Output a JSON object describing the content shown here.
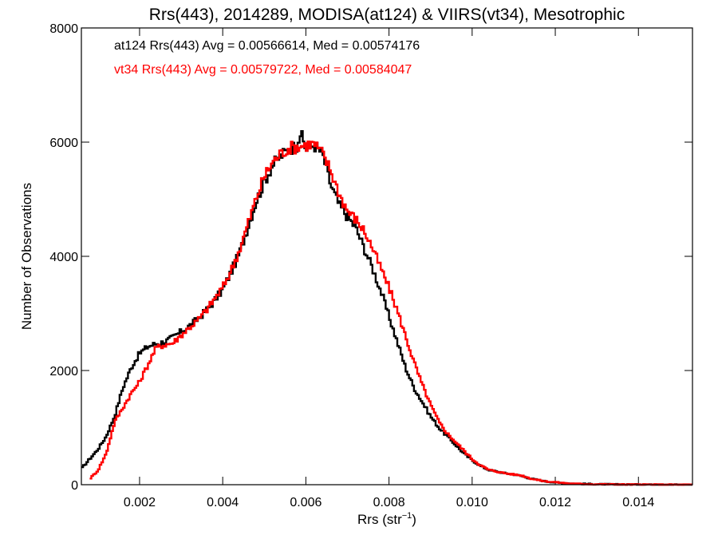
{
  "chart_data": {
    "type": "line",
    "title": "Rrs(443), 2014289, MODISA(at124) & VIIRS(vt34), Mesotrophic",
    "xlabel": "Rrs (str",
    "xlabel_sup": "−1",
    "xlabel_close": ")",
    "ylabel": "Number of Observations",
    "xlim": [
      0.0006,
      0.0153
    ],
    "ylim": [
      0,
      8000
    ],
    "x_ticks": [
      0.002,
      0.004,
      0.006,
      0.008,
      0.01,
      0.012,
      0.014
    ],
    "x_tick_labels": [
      "0.002",
      "0.004",
      "0.006",
      "0.008",
      "0.010",
      "0.012",
      "0.014"
    ],
    "y_ticks": [
      0,
      2000,
      4000,
      6000,
      8000
    ],
    "y_tick_labels": [
      "0",
      "2000",
      "4000",
      "6000",
      "8000"
    ],
    "grid": false,
    "annotations": [
      {
        "text": "at124 Rrs(443) Avg = 0.00566614, Med = 0.00574176",
        "color": "#000000"
      },
      {
        "text": "vt34 Rrs(443) Avg = 0.00579722, Med = 0.00584047",
        "color": "#ff0000"
      }
    ],
    "series": [
      {
        "color": "#000000",
        "points": [
          [
            0.0006,
            280
          ],
          [
            0.0008,
            450
          ],
          [
            0.001,
            620
          ],
          [
            0.0012,
            850
          ],
          [
            0.0014,
            1200
          ],
          [
            0.0016,
            1700
          ],
          [
            0.0018,
            2050
          ],
          [
            0.002,
            2300
          ],
          [
            0.0022,
            2420
          ],
          [
            0.0024,
            2470
          ],
          [
            0.0026,
            2500
          ],
          [
            0.0028,
            2580
          ],
          [
            0.003,
            2680
          ],
          [
            0.0032,
            2780
          ],
          [
            0.0034,
            2900
          ],
          [
            0.0036,
            3050
          ],
          [
            0.0038,
            3220
          ],
          [
            0.004,
            3420
          ],
          [
            0.0042,
            3720
          ],
          [
            0.0044,
            4050
          ],
          [
            0.0046,
            4500
          ],
          [
            0.0048,
            4950
          ],
          [
            0.005,
            5300
          ],
          [
            0.0052,
            5600
          ],
          [
            0.0054,
            5760
          ],
          [
            0.0056,
            5880
          ],
          [
            0.0058,
            5950
          ],
          [
            0.00585,
            6200
          ],
          [
            0.006,
            5880
          ],
          [
            0.0062,
            5950
          ],
          [
            0.0064,
            5800
          ],
          [
            0.0066,
            5250
          ],
          [
            0.0068,
            4900
          ],
          [
            0.007,
            4700
          ],
          [
            0.0072,
            4500
          ],
          [
            0.0074,
            4150
          ],
          [
            0.0076,
            3800
          ],
          [
            0.0078,
            3400
          ],
          [
            0.008,
            2950
          ],
          [
            0.0082,
            2500
          ],
          [
            0.0084,
            2050
          ],
          [
            0.0086,
            1700
          ],
          [
            0.0088,
            1450
          ],
          [
            0.009,
            1200
          ],
          [
            0.0092,
            1000
          ],
          [
            0.0094,
            850
          ],
          [
            0.0096,
            700
          ],
          [
            0.0098,
            550
          ],
          [
            0.01,
            430
          ],
          [
            0.0102,
            330
          ],
          [
            0.0104,
            260
          ],
          [
            0.0106,
            230
          ],
          [
            0.0108,
            200
          ],
          [
            0.011,
            180
          ],
          [
            0.0112,
            150
          ],
          [
            0.0114,
            110
          ],
          [
            0.0116,
            80
          ],
          [
            0.0118,
            55
          ],
          [
            0.012,
            40
          ],
          [
            0.0122,
            30
          ],
          [
            0.0124,
            20
          ],
          [
            0.0126,
            15
          ],
          [
            0.0128,
            12
          ],
          [
            0.013,
            8
          ],
          [
            0.0135,
            5
          ],
          [
            0.014,
            3
          ],
          [
            0.0145,
            2
          ],
          [
            0.015,
            1
          ],
          [
            0.0153,
            0
          ]
        ]
      },
      {
        "color": "#ff0000",
        "points": [
          [
            0.0008,
            100
          ],
          [
            0.001,
            250
          ],
          [
            0.0012,
            550
          ],
          [
            0.0014,
            1100
          ],
          [
            0.0016,
            1350
          ],
          [
            0.0018,
            1600
          ],
          [
            0.002,
            1800
          ],
          [
            0.0022,
            2100
          ],
          [
            0.0024,
            2400
          ],
          [
            0.0026,
            2450
          ],
          [
            0.0028,
            2480
          ],
          [
            0.003,
            2620
          ],
          [
            0.0032,
            2750
          ],
          [
            0.0034,
            2880
          ],
          [
            0.0036,
            3050
          ],
          [
            0.0038,
            3250
          ],
          [
            0.004,
            3450
          ],
          [
            0.0042,
            3750
          ],
          [
            0.0044,
            4100
          ],
          [
            0.0046,
            4550
          ],
          [
            0.0048,
            5000
          ],
          [
            0.005,
            5400
          ],
          [
            0.0052,
            5650
          ],
          [
            0.0054,
            5800
          ],
          [
            0.0056,
            5900
          ],
          [
            0.0058,
            5920
          ],
          [
            0.006,
            5950
          ],
          [
            0.0062,
            5970
          ],
          [
            0.0064,
            5800
          ],
          [
            0.0066,
            5500
          ],
          [
            0.0068,
            5100
          ],
          [
            0.007,
            4800
          ],
          [
            0.0072,
            4650
          ],
          [
            0.0074,
            4450
          ],
          [
            0.0076,
            4150
          ],
          [
            0.0078,
            3800
          ],
          [
            0.008,
            3450
          ],
          [
            0.0082,
            3050
          ],
          [
            0.0084,
            2600
          ],
          [
            0.0086,
            2150
          ],
          [
            0.0088,
            1750
          ],
          [
            0.009,
            1400
          ],
          [
            0.0092,
            1100
          ],
          [
            0.0094,
            900
          ],
          [
            0.0096,
            750
          ],
          [
            0.0098,
            600
          ],
          [
            0.01,
            450
          ],
          [
            0.0102,
            340
          ],
          [
            0.0104,
            260
          ],
          [
            0.0106,
            230
          ],
          [
            0.0108,
            200
          ],
          [
            0.011,
            180
          ],
          [
            0.0112,
            160
          ],
          [
            0.0114,
            110
          ],
          [
            0.0116,
            80
          ],
          [
            0.0118,
            55
          ],
          [
            0.012,
            45
          ],
          [
            0.0122,
            30
          ],
          [
            0.0124,
            20
          ],
          [
            0.0126,
            15
          ],
          [
            0.0128,
            10
          ],
          [
            0.013,
            8
          ],
          [
            0.0135,
            5
          ],
          [
            0.014,
            3
          ],
          [
            0.0145,
            2
          ],
          [
            0.015,
            1
          ],
          [
            0.0153,
            0
          ]
        ]
      }
    ]
  }
}
